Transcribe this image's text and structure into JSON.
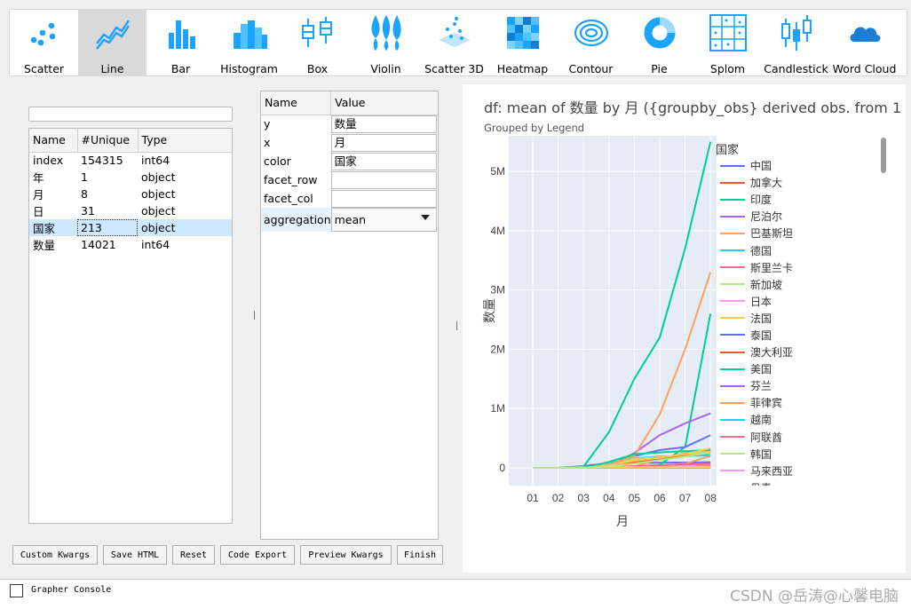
{
  "toolbar": {
    "items": [
      {
        "label": "Scatter",
        "icon": "scatter-icon"
      },
      {
        "label": "Line",
        "icon": "line-icon",
        "active": true
      },
      {
        "label": "Bar",
        "icon": "bar-icon"
      },
      {
        "label": "Histogram",
        "icon": "histogram-icon"
      },
      {
        "label": "Box",
        "icon": "box-icon"
      },
      {
        "label": "Violin",
        "icon": "violin-icon"
      },
      {
        "label": "Scatter 3D",
        "icon": "scatter3d-icon"
      },
      {
        "label": "Heatmap",
        "icon": "heatmap-icon"
      },
      {
        "label": "Contour",
        "icon": "contour-icon"
      },
      {
        "label": "Pie",
        "icon": "pie-icon"
      },
      {
        "label": "Splom",
        "icon": "splom-icon"
      },
      {
        "label": "Candlestick",
        "icon": "candlestick-icon"
      },
      {
        "label": "Word Cloud",
        "icon": "cloud-icon"
      }
    ],
    "accent_color": "#1aa3ff"
  },
  "search": {
    "value": ""
  },
  "columns_table": {
    "headers": [
      "Name",
      "#Unique",
      "Type"
    ],
    "rows": [
      [
        "index",
        "154315",
        "int64"
      ],
      [
        "年",
        "1",
        "object"
      ],
      [
        "月",
        "8",
        "object"
      ],
      [
        "日",
        "31",
        "object"
      ],
      [
        "国家",
        "213",
        "object"
      ],
      [
        "数量",
        "14021",
        "int64"
      ]
    ],
    "selected_row": 4
  },
  "props_table": {
    "headers": [
      "Name",
      "Value"
    ],
    "rows": [
      {
        "name": "y",
        "value": "数量"
      },
      {
        "name": "x",
        "value": "月"
      },
      {
        "name": "color",
        "value": "国家"
      },
      {
        "name": "facet_row",
        "value": ""
      },
      {
        "name": "facet_col",
        "value": ""
      },
      {
        "name": "aggregation",
        "value": "mean"
      }
    ]
  },
  "buttons": {
    "custom_kwargs": "Custom Kwargs",
    "save_html": "Save HTML",
    "reset": "Reset",
    "code_export": "Code Export",
    "preview_kwargs": "Preview Kwargs",
    "finish": "Finish"
  },
  "chart": {
    "title": "df: mean of 数量  by 月 ({groupby_obs} derived obs. from 1",
    "subtitle": "Grouped by Legend",
    "legend_title": "国家"
  },
  "chart_data": {
    "type": "line",
    "x": [
      "01",
      "02",
      "03",
      "04",
      "05",
      "06",
      "07",
      "08"
    ],
    "xlabel": "月",
    "ylabel": "数量",
    "ylim": [
      -300000,
      5600000
    ],
    "yticks": [
      0,
      1000000,
      2000000,
      3000000,
      4000000,
      5000000
    ],
    "ytick_labels": [
      "0",
      "1M",
      "2M",
      "3M",
      "4M",
      "5M"
    ],
    "grid": true,
    "legend_position": "right",
    "series": [
      {
        "name": "中国",
        "color": "#636efa",
        "values": [
          0,
          0,
          30000,
          80000,
          85000,
          85000,
          90000,
          95000
        ]
      },
      {
        "name": "加拿大",
        "color": "#ef553b",
        "values": [
          0,
          0,
          0,
          5000,
          20000,
          40000,
          60000,
          80000
        ]
      },
      {
        "name": "印度",
        "color": "#00cc96",
        "values": [
          0,
          0,
          0,
          0,
          5000,
          50000,
          350000,
          2600000
        ]
      },
      {
        "name": "尼泊尔",
        "color": "#ab63fa",
        "values": [
          0,
          0,
          0,
          0,
          0,
          5000,
          10000,
          30000
        ]
      },
      {
        "name": "巴基斯坦",
        "color": "#ffa15a",
        "values": [
          0,
          0,
          0,
          1000,
          20000,
          150000,
          250000,
          300000
        ]
      },
      {
        "name": "德国",
        "color": "#19d3f3",
        "values": [
          0,
          0,
          0,
          80000,
          160000,
          190000,
          200000,
          210000
        ]
      },
      {
        "name": "斯里兰卡",
        "color": "#ff6692",
        "values": [
          0,
          0,
          0,
          0,
          500,
          2000,
          2500,
          3000
        ]
      },
      {
        "name": "新加坡",
        "color": "#b6e880",
        "values": [
          0,
          0,
          0,
          1000,
          20000,
          40000,
          50000,
          55000
        ]
      },
      {
        "name": "日本",
        "color": "#ff97ff",
        "values": [
          0,
          0,
          0,
          5000,
          15000,
          18000,
          30000,
          60000
        ]
      },
      {
        "name": "法国",
        "color": "#fecb52",
        "values": [
          0,
          0,
          5000,
          60000,
          150000,
          180000,
          200000,
          280000
        ]
      },
      {
        "name": "泰国",
        "color": "#636efa",
        "values": [
          0,
          0,
          0,
          2000,
          3000,
          3000,
          3200,
          3400
        ]
      },
      {
        "name": "澳大利亚",
        "color": "#ef553b",
        "values": [
          0,
          0,
          0,
          5000,
          7000,
          7500,
          12000,
          25000
        ]
      },
      {
        "name": "美国",
        "color": "#00cc96",
        "values": [
          0,
          0,
          20000,
          600000,
          1500000,
          2200000,
          3700000,
          5500000
        ]
      },
      {
        "name": "芬兰",
        "color": "#ab63fa",
        "values": [
          0,
          0,
          0,
          2000,
          6000,
          7000,
          7300,
          7500
        ]
      },
      {
        "name": "菲律宾",
        "color": "#ffa15a",
        "values": [
          0,
          0,
          0,
          5000,
          15000,
          30000,
          70000,
          200000
        ]
      },
      {
        "name": "越南",
        "color": "#19d3f3",
        "values": [
          0,
          0,
          0,
          200,
          300,
          350,
          400,
          800
        ]
      },
      {
        "name": "阿联酋",
        "color": "#ff6692",
        "values": [
          0,
          0,
          0,
          10000,
          30000,
          45000,
          58000,
          65000
        ]
      },
      {
        "name": "韩国",
        "color": "#b6e880",
        "values": [
          0,
          0,
          10000,
          10000,
          11000,
          12000,
          14000,
          16000
        ]
      },
      {
        "name": "马来西亚",
        "color": "#ff97ff",
        "values": [
          0,
          0,
          1000,
          5000,
          6000,
          8000,
          8800,
          9200
        ]
      },
      {
        "name": "丹麦",
        "color": "#fecb52",
        "values": [
          0,
          0,
          1000,
          9000,
          11000,
          12000,
          13000,
          15000
        ]
      },
      {
        "name": "",
        "color": "#636efa",
        "values": [
          0,
          0,
          0,
          50000,
          200000,
          300000,
          350000,
          550000
        ]
      },
      {
        "name": "",
        "color": "#ab63fa",
        "values": [
          0,
          0,
          0,
          20000,
          250000,
          550000,
          750000,
          920000
        ]
      },
      {
        "name": "",
        "color": "#ffa15a",
        "values": [
          0,
          0,
          0,
          50000,
          200000,
          900000,
          2000000,
          3300000
        ]
      },
      {
        "name": "",
        "color": "#00cc96",
        "values": [
          0,
          0,
          0,
          100000,
          230000,
          260000,
          280000,
          300000
        ]
      },
      {
        "name": "",
        "color": "#ef553b",
        "values": [
          0,
          0,
          0,
          30000,
          100000,
          150000,
          200000,
          250000
        ]
      },
      {
        "name": "",
        "color": "#fecb52",
        "values": [
          0,
          0,
          0,
          40000,
          120000,
          170000,
          230000,
          330000
        ]
      },
      {
        "name": "",
        "color": "#b6e880",
        "values": [
          0,
          0,
          0,
          20000,
          70000,
          130000,
          190000,
          260000
        ]
      }
    ]
  },
  "console": {
    "label": "Grapher Console",
    "checked": false
  },
  "watermark": "CSDN @岳涛@心馨电脑"
}
